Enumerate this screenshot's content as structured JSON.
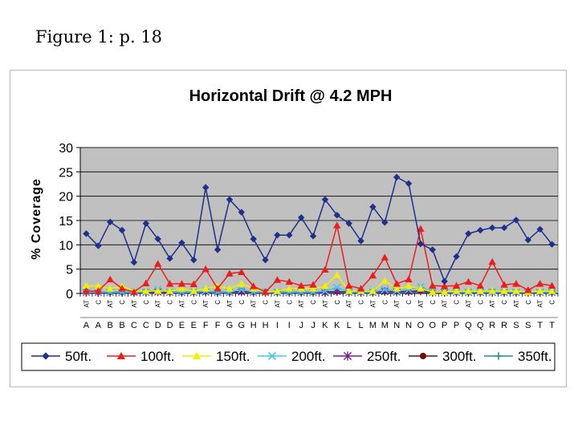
{
  "slide": {
    "caption": "Figure 1: p. 18"
  },
  "chart_data": {
    "type": "line",
    "title": "Horizontal Drift @ 4.2 MPH",
    "xlabel": "",
    "ylabel": "% Coverage",
    "ylim": [
      0,
      30
    ],
    "yticks": [
      0,
      5,
      10,
      15,
      20,
      25,
      30
    ],
    "grid": true,
    "legend_position": "bottom",
    "plot_background": "#c0c0c0",
    "categories": [
      "A",
      "A",
      "B",
      "B",
      "C",
      "C",
      "D",
      "D",
      "E",
      "E",
      "F",
      "F",
      "G",
      "G",
      "H",
      "H",
      "I",
      "I",
      "J",
      "J",
      "K",
      "K",
      "L",
      "L",
      "M",
      "M",
      "N",
      "N",
      "O",
      "O",
      "P",
      "P",
      "Q",
      "Q",
      "R",
      "R",
      "S",
      "S",
      "T",
      "T"
    ],
    "category_codes": [
      "AT",
      "C",
      "AT",
      "C",
      "AT",
      "C",
      "AT",
      "C",
      "AT",
      "C",
      "AT",
      "C",
      "AT",
      "C",
      "AT",
      "C",
      "AT",
      "C",
      "AT",
      "C",
      "AT",
      "C",
      "AT",
      "C",
      "AT",
      "C",
      "AT",
      "C",
      "AT",
      "C",
      "AT",
      "C",
      "AT",
      "C",
      "AT",
      "C",
      "AT",
      "C",
      "AT",
      "C"
    ],
    "series": [
      {
        "name": "50ft.",
        "color": "#1f2f8c",
        "marker": "diamond",
        "values": [
          12.3,
          9.8,
          14.7,
          13.0,
          6.4,
          14.4,
          11.2,
          7.2,
          10.4,
          6.9,
          21.8,
          9.0,
          19.3,
          16.7,
          11.2,
          6.9,
          12.0,
          12.0,
          15.6,
          11.8,
          19.3,
          16.1,
          14.4,
          10.8,
          17.8,
          14.6,
          23.9,
          22.6,
          10.2,
          9.0,
          2.5,
          7.6,
          12.3,
          13.0,
          13.5,
          13.5,
          15.1,
          11.0,
          13.2,
          10.1
        ]
      },
      {
        "name": "100ft.",
        "color": "#ee1c1c",
        "marker": "triangle",
        "values": [
          0.5,
          0.5,
          2.9,
          1.0,
          0.3,
          2.1,
          6.1,
          2.0,
          2.0,
          1.9,
          5.0,
          1.0,
          4.1,
          4.4,
          1.5,
          0.3,
          2.8,
          2.4,
          1.6,
          1.8,
          4.9,
          14.0,
          1.6,
          1.0,
          3.7,
          7.4,
          2.0,
          2.9,
          13.3,
          1.6,
          1.5,
          1.6,
          2.4,
          1.6,
          6.5,
          1.8,
          2.0,
          0.7,
          2.0,
          1.6
        ]
      },
      {
        "name": "150ft.",
        "color": "#f0f000",
        "marker": "triangle",
        "values": [
          1.6,
          1.5,
          1.0,
          1.5,
          0.5,
          0.5,
          0.5,
          0.5,
          1.0,
          0.5,
          1.0,
          1.5,
          1.0,
          2.0,
          1.0,
          0.3,
          0.5,
          1.0,
          1.0,
          1.0,
          1.5,
          3.8,
          0.5,
          0.5,
          0.5,
          2.6,
          1.0,
          1.5,
          1.0,
          0.3,
          0.3,
          0.5,
          0.5,
          0.5,
          0.5,
          0.5,
          0.5,
          0.3,
          0.5,
          0.5
        ]
      },
      {
        "name": "200ft.",
        "color": "#3ec8e8",
        "marker": "x",
        "values": [
          0.3,
          0.3,
          0.3,
          0.3,
          0.3,
          0.3,
          0.8,
          0.3,
          0.3,
          0.3,
          0.5,
          0.3,
          0.3,
          0.8,
          0.3,
          0.3,
          0.3,
          0.3,
          0.3,
          0.3,
          0.5,
          1.2,
          0.3,
          0.3,
          0.3,
          0.8,
          0.5,
          0.8,
          1.4,
          0.3,
          0.3,
          0.3,
          0.3,
          0.3,
          0.3,
          0.3,
          0.3,
          0.3,
          0.3,
          0.3
        ]
      },
      {
        "name": "250ft.",
        "color": "#7a1f8f",
        "marker": "asterisk",
        "values": [
          0.2,
          0.2,
          0.2,
          0.2,
          0.2,
          0.2,
          0.3,
          0.2,
          0.2,
          0.2,
          0.3,
          0.2,
          0.2,
          0.3,
          0.2,
          0.2,
          0.2,
          0.2,
          0.2,
          0.2,
          0.2,
          0.4,
          0.2,
          0.2,
          0.2,
          0.4,
          0.3,
          0.4,
          0.6,
          0.2,
          0.2,
          0.2,
          0.2,
          0.2,
          0.2,
          0.2,
          0.2,
          0.2,
          0.2,
          0.2
        ]
      },
      {
        "name": "300ft.",
        "color": "#6b0f0f",
        "marker": "circle",
        "values": [
          0.4,
          0.3,
          0.3,
          0.3,
          0.3,
          0.4,
          0.4,
          0.3,
          0.3,
          0.3,
          0.4,
          0.3,
          0.3,
          0.4,
          0.3,
          0.3,
          0.3,
          0.3,
          0.3,
          0.3,
          0.3,
          0.4,
          0.3,
          0.3,
          0.3,
          0.4,
          0.4,
          0.4,
          0.5,
          0.3,
          0.3,
          0.3,
          0.3,
          0.3,
          0.4,
          0.3,
          0.3,
          0.3,
          0.3,
          0.3
        ]
      },
      {
        "name": "350ft.",
        "color": "#1f8f8f",
        "marker": "plus",
        "values": [
          0.1,
          0.1,
          0.1,
          0.1,
          0.1,
          0.1,
          0.2,
          0.1,
          0.1,
          0.1,
          0.1,
          0.1,
          0.1,
          0.2,
          0.1,
          0.1,
          0.1,
          0.1,
          0.1,
          0.1,
          0.1,
          0.2,
          0.1,
          0.1,
          0.1,
          0.2,
          0.1,
          0.2,
          0.3,
          0.1,
          0.1,
          0.1,
          0.1,
          0.1,
          0.1,
          0.1,
          0.1,
          0.1,
          0.1,
          0.1
        ]
      }
    ]
  }
}
